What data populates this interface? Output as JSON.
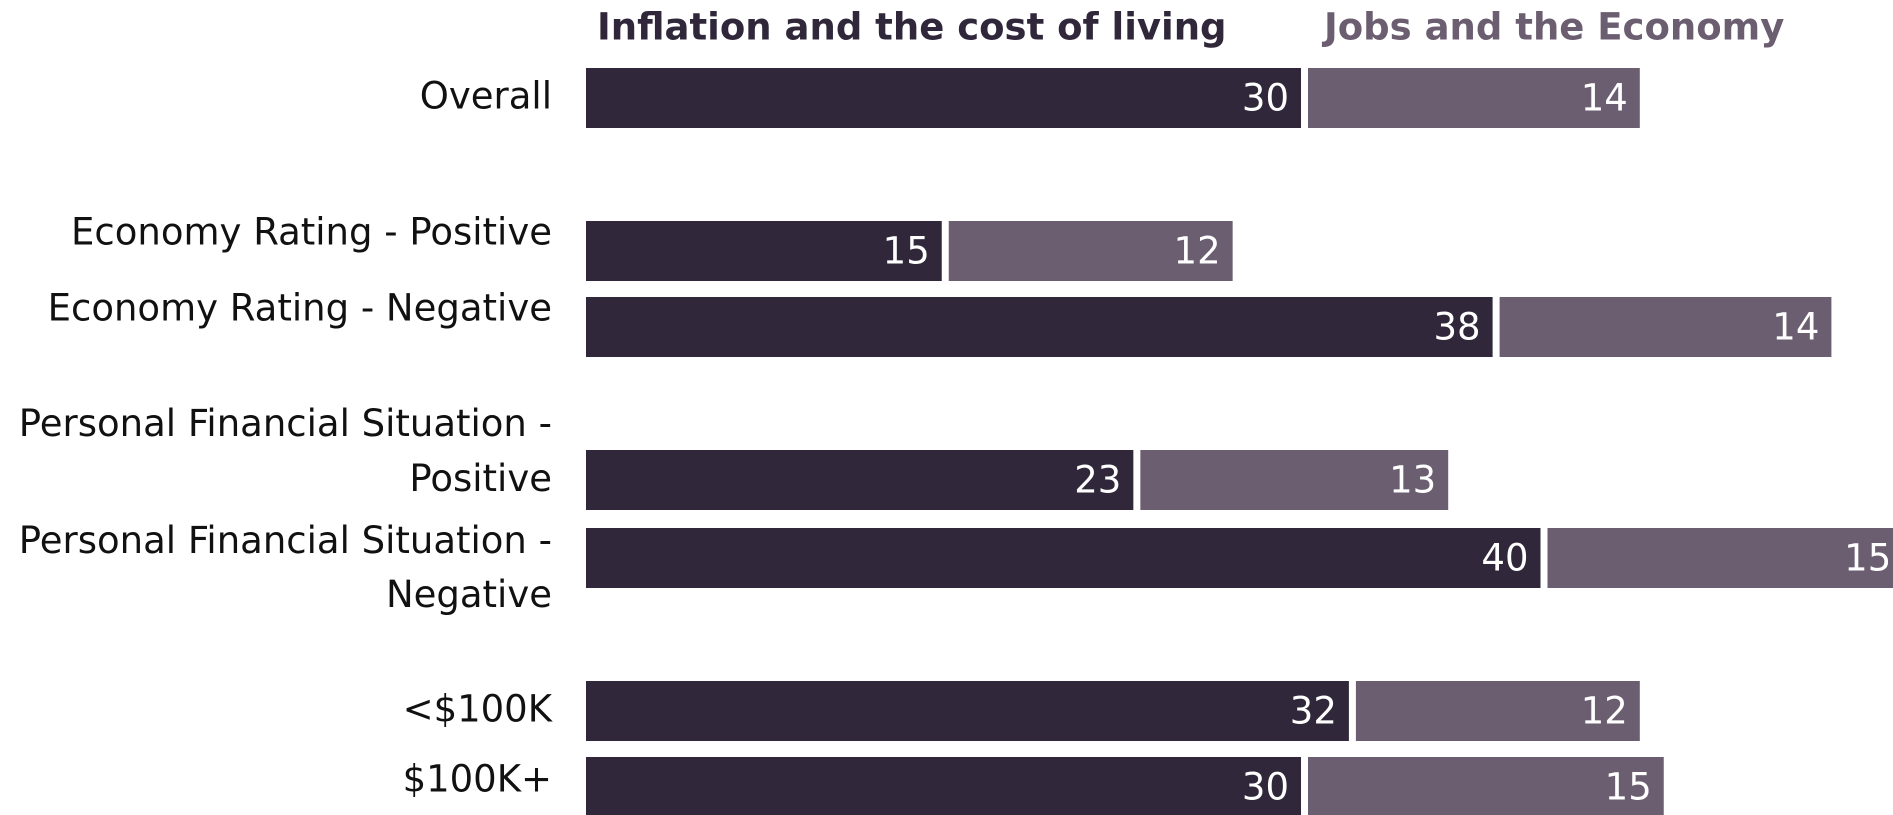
{
  "chart_data": {
    "type": "stacked-bar-horizontal",
    "categories": [
      "Overall",
      "Economy Rating - Positive",
      "Economy Rating - Negative",
      "Personal Financial Situation - Positive",
      "Personal Financial Situation - Negative",
      "<$100K",
      "$100K+"
    ],
    "series": [
      {
        "name": "Inflation and the cost of living",
        "color": "#30283a",
        "values": [
          30,
          15,
          38,
          23,
          40,
          32,
          30
        ]
      },
      {
        "name": "Jobs and the Economy",
        "color": "#6b5e70",
        "values": [
          14,
          12,
          14,
          13,
          15,
          12,
          15
        ]
      }
    ]
  }
}
